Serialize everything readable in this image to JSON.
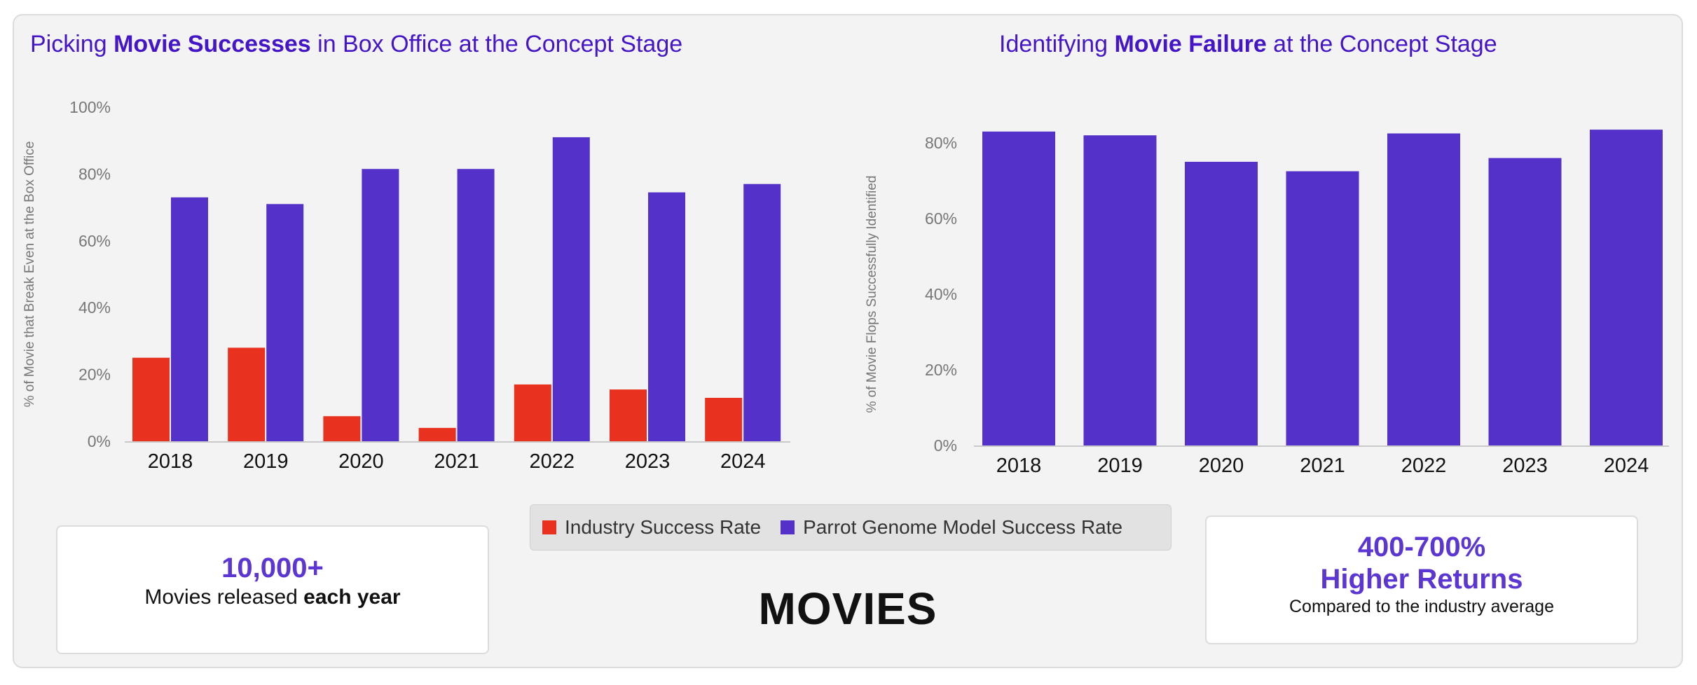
{
  "colors": {
    "industry": "#e8311f",
    "parrot": "#5432c9",
    "title": "#4416c7",
    "accent": "#5b36d2"
  },
  "chart_data": [
    {
      "type": "bar",
      "title_parts": {
        "pre": "Picking ",
        "bold": "Movie Successes",
        "post": " in Box Office at the Concept Stage"
      },
      "ylabel": "% of Movie that Break Even at the Box Office",
      "categories": [
        "2018",
        "2019",
        "2020",
        "2021",
        "2022",
        "2023",
        "2024"
      ],
      "yticks": [
        "0%",
        "20%",
        "40%",
        "60%",
        "80%",
        "100%"
      ],
      "ylim": [
        0,
        100
      ],
      "series": [
        {
          "name": "Industry Success Rate",
          "values": [
            25,
            28,
            7.5,
            4,
            17,
            15.5,
            13
          ]
        },
        {
          "name": "Parrot Genome Model Success Rate",
          "values": [
            73,
            71,
            81.5,
            81.5,
            91,
            74.5,
            77
          ]
        }
      ]
    },
    {
      "type": "bar",
      "title_parts": {
        "pre": "Identifying ",
        "bold": "Movie Failure",
        "post": " at the Concept Stage"
      },
      "ylabel": "% of Movie Flops Successfully Identified",
      "categories": [
        "2018",
        "2019",
        "2020",
        "2021",
        "2022",
        "2023",
        "2024"
      ],
      "yticks": [
        "0%",
        "20%",
        "40%",
        "60%",
        "80%"
      ],
      "ylim": [
        0,
        80
      ],
      "series": [
        {
          "name": "Parrot Genome Model Success Rate",
          "values": [
            83,
            82,
            75,
            72.5,
            82.5,
            76,
            83.5
          ]
        }
      ]
    }
  ],
  "legend": [
    {
      "label": "Industry Success Rate"
    },
    {
      "label": "Parrot Genome Model Success Rate"
    }
  ],
  "cards": {
    "left": {
      "big": "10,000+",
      "text_pre": "Movies released ",
      "text_bold": "each year"
    },
    "right": {
      "big_line1": "400-700%",
      "big_line2": "Higher Returns",
      "sub": "Compared to the industry average"
    }
  },
  "footer": {
    "label": "MOVIES"
  }
}
